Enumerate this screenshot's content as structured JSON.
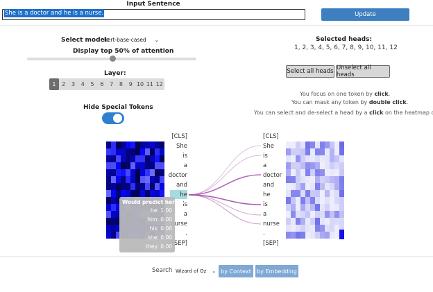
{
  "input": {
    "title": "Input Sentence",
    "value": "She is a doctor and he is a nurse."
  },
  "update_label": "Update",
  "model": {
    "label": "Select model:",
    "selected": "bert-base-cased",
    "chevron": "chevron-down-icon"
  },
  "display_top_label": "Display top 50% of attention",
  "attention_top_fraction": 0.5,
  "layer": {
    "label": "Layer:",
    "items": [
      "1",
      "2",
      "3",
      "4",
      "5",
      "6",
      "7",
      "8",
      "9",
      "10",
      "11",
      "12"
    ],
    "active": "1"
  },
  "hide_special": {
    "label": "Hide Special Tokens",
    "on": true
  },
  "heads": {
    "label": "Selected heads:",
    "list": "1, 2, 3, 4, 5, 6, 7, 8, 9, 10, 11, 12"
  },
  "select_all_label": "Select all heads",
  "unselect_all_label": "Unselect all heads",
  "help": {
    "l1a": "You focus on one token by ",
    "l1b": "click",
    "l1c": ".",
    "l2a": "You can mask any token by ",
    "l2b": "double click",
    "l2c": ".",
    "l3a": "You can select and de-select a head by a ",
    "l3b": "click",
    "l3c": " on the heatmap columns"
  },
  "tokens_left": [
    "[CLS]",
    "She",
    "is",
    "a",
    "doctor",
    "and",
    "he",
    "is",
    "a",
    "nurse",
    ".",
    "[SEP]"
  ],
  "tokens_right": [
    "[CLS]",
    "She",
    "is",
    "a",
    "doctor",
    "and",
    "he",
    "is",
    "a",
    "nurse",
    ".",
    "[SEP]"
  ],
  "focused_token": "he",
  "tooltip": {
    "title": "Would predict here...",
    "rows": [
      {
        "word": "he:",
        "p": "1.00"
      },
      {
        "word": "him:",
        "p": "0.00"
      },
      {
        "word": "his:",
        "p": "0.00"
      },
      {
        "word": "she:",
        "p": "0.00"
      },
      {
        "word": "they:",
        "p": "0.00"
      }
    ]
  },
  "search": {
    "label": "Search",
    "selected": "Wizard of Oz",
    "chevron": "chevron-down-icon"
  },
  "by_context_label": "by Context",
  "by_embedding_label": "by Embedding",
  "colors": {
    "accent": "#3d7fc1",
    "heat_left": "#1010f0",
    "heat_right": "#9090f0",
    "lines": "#a04aa6"
  }
}
